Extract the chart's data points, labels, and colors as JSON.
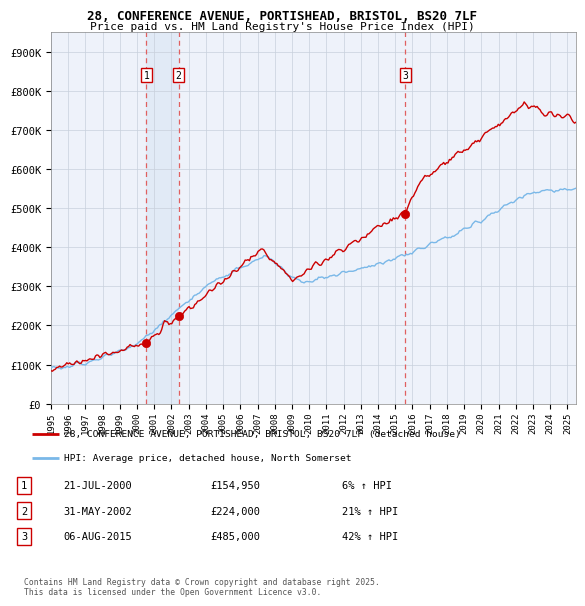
{
  "title_line1": "28, CONFERENCE AVENUE, PORTISHEAD, BRISTOL, BS20 7LF",
  "title_line2": "Price paid vs. HM Land Registry's House Price Index (HPI)",
  "ytick_vals": [
    0,
    100000,
    200000,
    300000,
    400000,
    500000,
    600000,
    700000,
    800000,
    900000
  ],
  "ylim": [
    0,
    950000
  ],
  "xlim_start": 1995.0,
  "xlim_end": 2025.5,
  "sale_dates": [
    2000.54,
    2002.41,
    2015.59
  ],
  "sale_prices": [
    154950,
    224000,
    485000
  ],
  "sale_labels": [
    "1",
    "2",
    "3"
  ],
  "hpi_color": "#7ab8e8",
  "price_color": "#cc0000",
  "dashed_color": "#e06060",
  "shade_color": "#dce8f5",
  "background_color": "#eef2fa",
  "legend_label_price": "28, CONFERENCE AVENUE, PORTISHEAD, BRISTOL, BS20 7LF (detached house)",
  "legend_label_hpi": "HPI: Average price, detached house, North Somerset",
  "table_rows": [
    [
      "1",
      "21-JUL-2000",
      "£154,950",
      "6% ↑ HPI"
    ],
    [
      "2",
      "31-MAY-2002",
      "£224,000",
      "21% ↑ HPI"
    ],
    [
      "3",
      "06-AUG-2015",
      "£485,000",
      "42% ↑ HPI"
    ]
  ],
  "footnote": "Contains HM Land Registry data © Crown copyright and database right 2025.\nThis data is licensed under the Open Government Licence v3.0."
}
